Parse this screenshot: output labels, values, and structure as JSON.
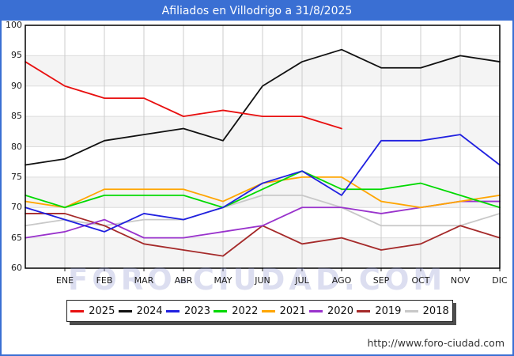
{
  "title": "Afiliados en Villodrigo a 31/8/2025",
  "url": "http://www.foro-ciudad.com",
  "watermark": "FORO-CIUDAD.COM",
  "colors": {
    "titlebar_bg": "#3a6fd3",
    "titlebar_text": "#ffffff",
    "outer_border": "#3a6fd3",
    "plot_border": "#000000",
    "band_fill": "#f4f4f4",
    "vgrid": "#cccccc",
    "hgrid": "#dcdcdc"
  },
  "chart_data": {
    "type": "line",
    "title": "Afiliados en Villodrigo a 31/8/2025",
    "xlabel": "",
    "ylabel": "",
    "categories": [
      "ENE",
      "FEB",
      "MAR",
      "ABR",
      "MAY",
      "JUN",
      "JUL",
      "AGO",
      "SEP",
      "OCT",
      "NOV",
      "DIC"
    ],
    "y_axis": {
      "min": 60,
      "max": 100,
      "tick_step": 5,
      "ticks": [
        100,
        95,
        90,
        85,
        80,
        75,
        70,
        65,
        60
      ]
    },
    "grid": true,
    "legend_position": "bottom",
    "point_layout_note": "Each series has a leading point drawn on the y-axis (previous December value) followed by 12 monthly points ENE-DIC at the vertical gridlines. The 2025 series ends at AGO.",
    "series": [
      {
        "name": "2025",
        "color": "#e81010",
        "values": [
          94,
          90,
          88,
          88,
          85,
          86,
          85,
          85,
          83
        ]
      },
      {
        "name": "2024",
        "color": "#111111",
        "values": [
          77,
          78,
          81,
          82,
          83,
          81,
          90,
          94,
          96,
          93,
          93,
          95,
          94
        ]
      },
      {
        "name": "2023",
        "color": "#2020e0",
        "values": [
          70,
          68,
          66,
          69,
          68,
          70,
          74,
          76,
          72,
          81,
          81,
          82,
          77
        ]
      },
      {
        "name": "2022",
        "color": "#00d900",
        "values": [
          72,
          70,
          72,
          72,
          72,
          70,
          73,
          76,
          73,
          73,
          74,
          72,
          70
        ]
      },
      {
        "name": "2021",
        "color": "#ffa500",
        "values": [
          71,
          70,
          73,
          73,
          73,
          71,
          74,
          75,
          75,
          71,
          70,
          71,
          72
        ]
      },
      {
        "name": "2020",
        "color": "#9933cc",
        "values": [
          65,
          66,
          68,
          65,
          65,
          66,
          67,
          70,
          70,
          69,
          70,
          71,
          71
        ]
      },
      {
        "name": "2019",
        "color": "#a52a2a",
        "values": [
          69,
          69,
          67,
          64,
          63,
          62,
          67,
          64,
          65,
          63,
          64,
          67,
          65
        ]
      },
      {
        "name": "2018",
        "color": "#c8c8c8",
        "values": [
          67,
          68,
          67,
          68,
          68,
          70,
          72,
          72,
          70,
          67,
          67,
          67,
          69
        ]
      }
    ]
  }
}
